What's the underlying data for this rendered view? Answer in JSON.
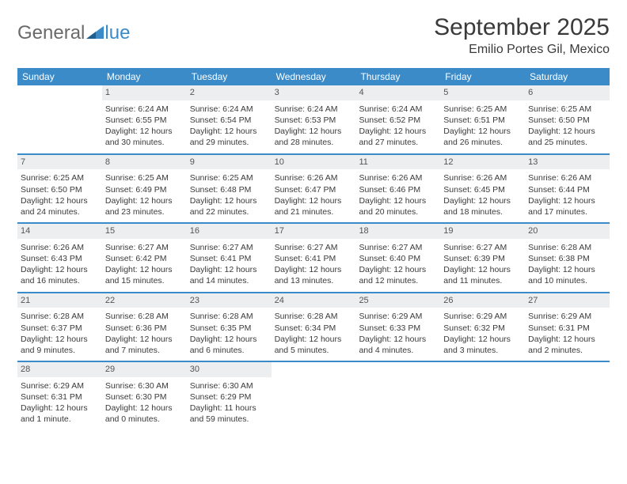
{
  "brand": {
    "part1": "General",
    "part2": "lue"
  },
  "title": "September 2025",
  "subtitle": "Emilio Portes Gil, Mexico",
  "weekdays": [
    "Sunday",
    "Monday",
    "Tuesday",
    "Wednesday",
    "Thursday",
    "Friday",
    "Saturday"
  ],
  "colors": {
    "accent": "#3b8bc9",
    "daybar": "#eceeef",
    "text": "#3a3a3a",
    "background": "#ffffff"
  },
  "weeks": [
    [
      {
        "n": "",
        "empty": true
      },
      {
        "n": "1",
        "sunrise": "Sunrise: 6:24 AM",
        "sunset": "Sunset: 6:55 PM",
        "daylight": "Daylight: 12 hours and 30 minutes."
      },
      {
        "n": "2",
        "sunrise": "Sunrise: 6:24 AM",
        "sunset": "Sunset: 6:54 PM",
        "daylight": "Daylight: 12 hours and 29 minutes."
      },
      {
        "n": "3",
        "sunrise": "Sunrise: 6:24 AM",
        "sunset": "Sunset: 6:53 PM",
        "daylight": "Daylight: 12 hours and 28 minutes."
      },
      {
        "n": "4",
        "sunrise": "Sunrise: 6:24 AM",
        "sunset": "Sunset: 6:52 PM",
        "daylight": "Daylight: 12 hours and 27 minutes."
      },
      {
        "n": "5",
        "sunrise": "Sunrise: 6:25 AM",
        "sunset": "Sunset: 6:51 PM",
        "daylight": "Daylight: 12 hours and 26 minutes."
      },
      {
        "n": "6",
        "sunrise": "Sunrise: 6:25 AM",
        "sunset": "Sunset: 6:50 PM",
        "daylight": "Daylight: 12 hours and 25 minutes."
      }
    ],
    [
      {
        "n": "7",
        "sunrise": "Sunrise: 6:25 AM",
        "sunset": "Sunset: 6:50 PM",
        "daylight": "Daylight: 12 hours and 24 minutes."
      },
      {
        "n": "8",
        "sunrise": "Sunrise: 6:25 AM",
        "sunset": "Sunset: 6:49 PM",
        "daylight": "Daylight: 12 hours and 23 minutes."
      },
      {
        "n": "9",
        "sunrise": "Sunrise: 6:25 AM",
        "sunset": "Sunset: 6:48 PM",
        "daylight": "Daylight: 12 hours and 22 minutes."
      },
      {
        "n": "10",
        "sunrise": "Sunrise: 6:26 AM",
        "sunset": "Sunset: 6:47 PM",
        "daylight": "Daylight: 12 hours and 21 minutes."
      },
      {
        "n": "11",
        "sunrise": "Sunrise: 6:26 AM",
        "sunset": "Sunset: 6:46 PM",
        "daylight": "Daylight: 12 hours and 20 minutes."
      },
      {
        "n": "12",
        "sunrise": "Sunrise: 6:26 AM",
        "sunset": "Sunset: 6:45 PM",
        "daylight": "Daylight: 12 hours and 18 minutes."
      },
      {
        "n": "13",
        "sunrise": "Sunrise: 6:26 AM",
        "sunset": "Sunset: 6:44 PM",
        "daylight": "Daylight: 12 hours and 17 minutes."
      }
    ],
    [
      {
        "n": "14",
        "sunrise": "Sunrise: 6:26 AM",
        "sunset": "Sunset: 6:43 PM",
        "daylight": "Daylight: 12 hours and 16 minutes."
      },
      {
        "n": "15",
        "sunrise": "Sunrise: 6:27 AM",
        "sunset": "Sunset: 6:42 PM",
        "daylight": "Daylight: 12 hours and 15 minutes."
      },
      {
        "n": "16",
        "sunrise": "Sunrise: 6:27 AM",
        "sunset": "Sunset: 6:41 PM",
        "daylight": "Daylight: 12 hours and 14 minutes."
      },
      {
        "n": "17",
        "sunrise": "Sunrise: 6:27 AM",
        "sunset": "Sunset: 6:41 PM",
        "daylight": "Daylight: 12 hours and 13 minutes."
      },
      {
        "n": "18",
        "sunrise": "Sunrise: 6:27 AM",
        "sunset": "Sunset: 6:40 PM",
        "daylight": "Daylight: 12 hours and 12 minutes."
      },
      {
        "n": "19",
        "sunrise": "Sunrise: 6:27 AM",
        "sunset": "Sunset: 6:39 PM",
        "daylight": "Daylight: 12 hours and 11 minutes."
      },
      {
        "n": "20",
        "sunrise": "Sunrise: 6:28 AM",
        "sunset": "Sunset: 6:38 PM",
        "daylight": "Daylight: 12 hours and 10 minutes."
      }
    ],
    [
      {
        "n": "21",
        "sunrise": "Sunrise: 6:28 AM",
        "sunset": "Sunset: 6:37 PM",
        "daylight": "Daylight: 12 hours and 9 minutes."
      },
      {
        "n": "22",
        "sunrise": "Sunrise: 6:28 AM",
        "sunset": "Sunset: 6:36 PM",
        "daylight": "Daylight: 12 hours and 7 minutes."
      },
      {
        "n": "23",
        "sunrise": "Sunrise: 6:28 AM",
        "sunset": "Sunset: 6:35 PM",
        "daylight": "Daylight: 12 hours and 6 minutes."
      },
      {
        "n": "24",
        "sunrise": "Sunrise: 6:28 AM",
        "sunset": "Sunset: 6:34 PM",
        "daylight": "Daylight: 12 hours and 5 minutes."
      },
      {
        "n": "25",
        "sunrise": "Sunrise: 6:29 AM",
        "sunset": "Sunset: 6:33 PM",
        "daylight": "Daylight: 12 hours and 4 minutes."
      },
      {
        "n": "26",
        "sunrise": "Sunrise: 6:29 AM",
        "sunset": "Sunset: 6:32 PM",
        "daylight": "Daylight: 12 hours and 3 minutes."
      },
      {
        "n": "27",
        "sunrise": "Sunrise: 6:29 AM",
        "sunset": "Sunset: 6:31 PM",
        "daylight": "Daylight: 12 hours and 2 minutes."
      }
    ],
    [
      {
        "n": "28",
        "sunrise": "Sunrise: 6:29 AM",
        "sunset": "Sunset: 6:31 PM",
        "daylight": "Daylight: 12 hours and 1 minute."
      },
      {
        "n": "29",
        "sunrise": "Sunrise: 6:30 AM",
        "sunset": "Sunset: 6:30 PM",
        "daylight": "Daylight: 12 hours and 0 minutes."
      },
      {
        "n": "30",
        "sunrise": "Sunrise: 6:30 AM",
        "sunset": "Sunset: 6:29 PM",
        "daylight": "Daylight: 11 hours and 59 minutes."
      },
      {
        "n": "",
        "empty": true
      },
      {
        "n": "",
        "empty": true
      },
      {
        "n": "",
        "empty": true
      },
      {
        "n": "",
        "empty": true
      }
    ]
  ]
}
